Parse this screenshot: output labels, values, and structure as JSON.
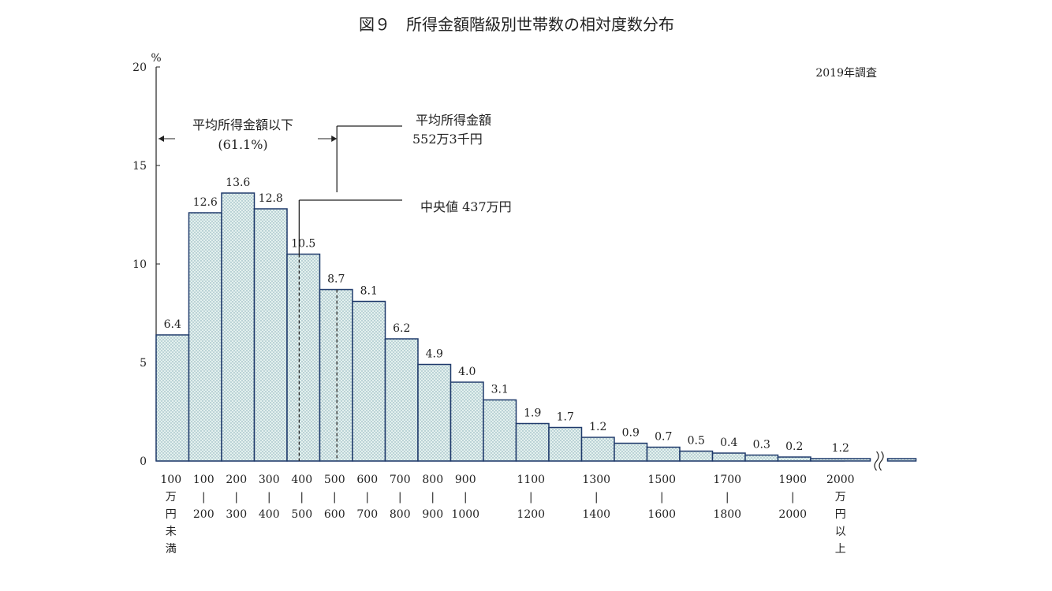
{
  "chart_data": {
    "type": "bar",
    "title": "図９　所得金額階級別世帯数の相対度数分布",
    "survey_note": "2019年調査",
    "y_unit": "%",
    "ylim": [
      0,
      20
    ],
    "yticks": [
      0,
      5,
      10,
      15,
      20
    ],
    "bar_color": "#e3f0ee",
    "bar_stroke": "#1f3a6b",
    "values": [
      6.4,
      12.6,
      13.6,
      12.8,
      10.5,
      8.7,
      8.1,
      6.2,
      4.9,
      4.0,
      3.1,
      1.9,
      1.7,
      1.2,
      0.9,
      0.7,
      0.5,
      0.4,
      0.3,
      0.2,
      1.2
    ],
    "value_labels": [
      "6.4",
      "12.6",
      "13.6",
      "12.8",
      "10.5",
      "8.7",
      "8.1",
      "6.2",
      "4.9",
      "4.0",
      "3.1",
      "1.9",
      "1.7",
      "1.2",
      "0.9",
      "0.7",
      "0.5",
      "0.4",
      "0.3",
      "0.2",
      "1.2"
    ],
    "x_labels": [
      {
        "lines": [
          "100",
          "万",
          "円",
          "未",
          "満"
        ]
      },
      {
        "lines": [
          "100",
          "|",
          "200"
        ]
      },
      {
        "lines": [
          "200",
          "|",
          "300"
        ]
      },
      {
        "lines": [
          "300",
          "|",
          "400"
        ]
      },
      {
        "lines": [
          "400",
          "|",
          "500"
        ]
      },
      {
        "lines": [
          "500",
          "|",
          "600"
        ]
      },
      {
        "lines": [
          "600",
          "|",
          "700"
        ]
      },
      {
        "lines": [
          "700",
          "|",
          "800"
        ]
      },
      {
        "lines": [
          "800",
          "|",
          "900"
        ]
      },
      {
        "lines": [
          "900",
          "|",
          "1000"
        ]
      },
      {
        "lines": []
      },
      {
        "lines": [
          "1100",
          "|",
          "1200"
        ]
      },
      {
        "lines": []
      },
      {
        "lines": [
          "1300",
          "|",
          "1400"
        ]
      },
      {
        "lines": []
      },
      {
        "lines": [
          "1500",
          "|",
          "1600"
        ]
      },
      {
        "lines": []
      },
      {
        "lines": [
          "1700",
          "|",
          "1800"
        ]
      },
      {
        "lines": []
      },
      {
        "lines": [
          "1900",
          "|",
          "2000"
        ]
      },
      {
        "lines": [
          "2000",
          "万",
          "円",
          "以",
          "上"
        ]
      }
    ],
    "annotations": {
      "below_mean_label": "平均所得金額以下",
      "below_mean_pct": "(61.1%)",
      "mean_label": "平均所得金額",
      "mean_value_label": "552万3千円",
      "mean_value": 552.3,
      "median_label": "中央値 437万円",
      "median_value": 437
    }
  }
}
